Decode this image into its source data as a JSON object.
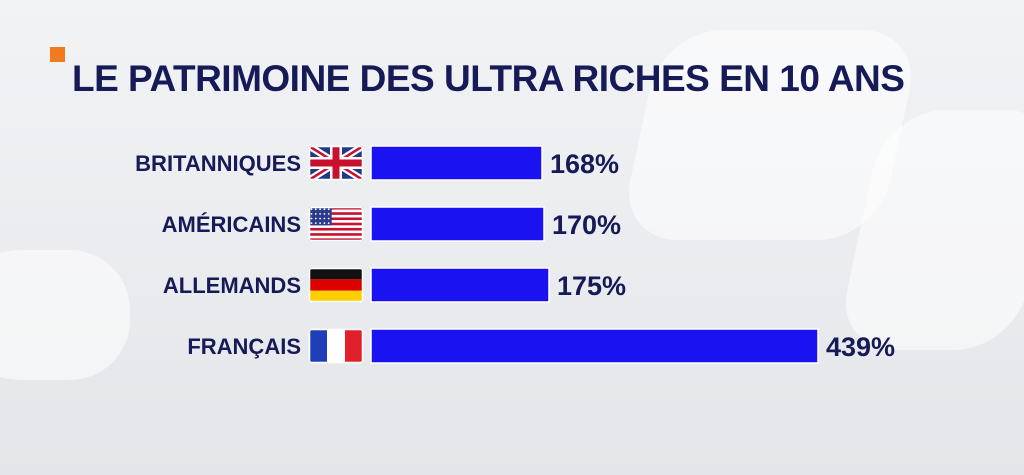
{
  "title": "LE PATRIMOINE DES ULTRA RICHES EN 10 ANS",
  "colors": {
    "bar": "#1a12f0",
    "text": "#161a56",
    "accent": "#f07a1e"
  },
  "chart_data": {
    "type": "bar",
    "orientation": "horizontal",
    "title": "LE PATRIMOINE DES ULTRA RICHES EN 10 ANS",
    "categories": [
      "BRITANNIQUES",
      "AMÉRICAINS",
      "ALLEMANDS",
      "FRANÇAIS"
    ],
    "values": [
      168,
      170,
      175,
      439
    ],
    "value_labels": [
      "168%",
      "170%",
      "175%",
      "439%"
    ],
    "flags": [
      "uk-flag-icon",
      "usa-flag-icon",
      "germany-flag-icon",
      "france-flag-icon"
    ],
    "unit": "%",
    "grid": false,
    "legend": "none"
  }
}
